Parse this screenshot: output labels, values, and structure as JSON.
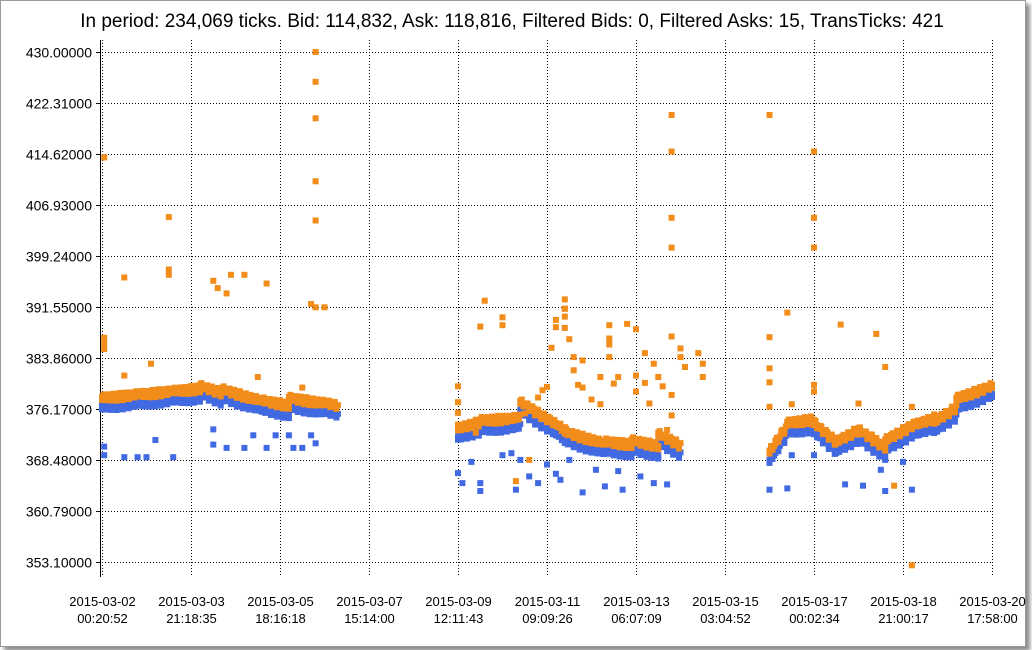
{
  "chart_data": {
    "type": "scatter",
    "title": "In period: 234,069 ticks. Bid: 114,832, Ask: 118,816, Filtered Bids: 0, Filtered Asks: 15, TransTicks: 421",
    "ylim": [
      353.1,
      430.0
    ],
    "y_ticks": [
      "430.00000",
      "422.31000",
      "414.62000",
      "406.93000",
      "399.24000",
      "391.55000",
      "383.86000",
      "376.17000",
      "368.48000",
      "360.79000",
      "353.10000"
    ],
    "x_ticks": [
      {
        "date": "2015-03-02",
        "time": "00:20:52"
      },
      {
        "date": "2015-03-03",
        "time": "21:18:35"
      },
      {
        "date": "2015-03-05",
        "time": "18:16:18"
      },
      {
        "date": "2015-03-07",
        "time": "15:14:00"
      },
      {
        "date": "2015-03-09",
        "time": "12:11:43"
      },
      {
        "date": "2015-03-11",
        "time": "09:09:26"
      },
      {
        "date": "2015-03-13",
        "time": "06:07:09"
      },
      {
        "date": "2015-03-15",
        "time": "03:04:52"
      },
      {
        "date": "2015-03-17",
        "time": "00:02:34"
      },
      {
        "date": "2015-03-18",
        "time": "21:00:17"
      },
      {
        "date": "2015-03-20",
        "time": "17:58:00"
      }
    ],
    "grid": true,
    "series": [
      {
        "color": "#4169e1",
        "segments": [
          [
            0.0,
            2.2,
            376.6,
            378.0
          ],
          [
            2.2,
            2.7,
            378.6,
            377.4
          ],
          [
            2.7,
            3.6,
            378.0,
            376.2
          ],
          [
            3.6,
            4.2,
            376.2,
            375.5
          ],
          [
            4.2,
            5.3,
            376.6,
            375.6
          ],
          [
            8.0,
            8.5,
            372.0,
            373.0
          ],
          [
            8.5,
            9.4,
            373.2,
            373.6
          ],
          [
            9.4,
            10.4,
            376.0,
            371.8
          ],
          [
            10.4,
            11.3,
            371.5,
            369.7
          ],
          [
            11.3,
            11.9,
            370.0,
            369.6
          ],
          [
            11.9,
            12.5,
            370.2,
            369.4
          ],
          [
            12.5,
            13.0,
            371.2,
            369.5
          ],
          [
            15.0,
            15.4,
            368.5,
            372.5
          ],
          [
            15.4,
            16.0,
            372.8,
            373.4
          ],
          [
            16.0,
            16.5,
            372.8,
            370.0
          ],
          [
            16.5,
            17.0,
            370.0,
            371.8
          ],
          [
            17.0,
            17.6,
            371.8,
            369.2
          ],
          [
            17.6,
            18.3,
            370.2,
            372.8
          ],
          [
            18.3,
            18.7,
            372.6,
            373.6
          ],
          [
            18.7,
            19.2,
            373.0,
            375.2
          ],
          [
            19.2,
            20.0,
            376.5,
            378.4
          ]
        ],
        "points": [
          [
            0.05,
            370.5
          ],
          [
            0.05,
            369.2
          ],
          [
            0.5,
            368.9
          ],
          [
            0.8,
            368.9
          ],
          [
            1.0,
            368.9
          ],
          [
            1.2,
            371.5
          ],
          [
            1.6,
            368.9
          ],
          [
            2.5,
            370.8
          ],
          [
            2.5,
            373.1
          ],
          [
            2.8,
            370.3
          ],
          [
            3.2,
            370.3
          ],
          [
            3.4,
            372.2
          ],
          [
            3.7,
            370.3
          ],
          [
            3.9,
            372.2
          ],
          [
            4.2,
            372.2
          ],
          [
            4.3,
            370.3
          ],
          [
            4.5,
            370.3
          ],
          [
            4.7,
            372.2
          ],
          [
            4.8,
            371.0
          ],
          [
            8.0,
            366.5
          ],
          [
            8.1,
            365.0
          ],
          [
            8.3,
            368.2
          ],
          [
            8.5,
            365.0
          ],
          [
            8.5,
            363.8
          ],
          [
            9.0,
            369.2
          ],
          [
            9.2,
            369.5
          ],
          [
            9.3,
            364.0
          ],
          [
            9.4,
            368.5
          ],
          [
            9.6,
            366.0
          ],
          [
            9.8,
            365.0
          ],
          [
            10.0,
            367.8
          ],
          [
            10.2,
            366.4
          ],
          [
            10.3,
            365.5
          ],
          [
            10.5,
            368.5
          ],
          [
            10.8,
            363.6
          ],
          [
            11.1,
            367.0
          ],
          [
            11.3,
            364.5
          ],
          [
            11.6,
            366.8
          ],
          [
            11.7,
            364.0
          ],
          [
            12.1,
            366.0
          ],
          [
            12.4,
            365.0
          ],
          [
            12.7,
            364.8
          ],
          [
            15.0,
            364.0
          ],
          [
            15.4,
            364.2
          ],
          [
            15.5,
            369.2
          ],
          [
            16.0,
            369.2
          ],
          [
            16.7,
            364.8
          ],
          [
            17.1,
            364.6
          ],
          [
            17.5,
            367.0
          ],
          [
            17.6,
            363.8
          ],
          [
            18.0,
            368.2
          ],
          [
            18.2,
            364.0
          ]
        ]
      },
      {
        "color": "#f28c1a",
        "segments": [
          [
            0.0,
            2.2,
            378.0,
            379.4
          ],
          [
            2.2,
            2.7,
            379.8,
            378.8
          ],
          [
            2.7,
            3.6,
            379.3,
            377.5
          ],
          [
            3.6,
            4.2,
            377.6,
            376.9
          ],
          [
            4.2,
            5.3,
            378.0,
            376.9
          ],
          [
            8.0,
            8.5,
            373.4,
            374.4
          ],
          [
            8.5,
            9.4,
            374.6,
            375.0
          ],
          [
            9.4,
            10.4,
            377.4,
            373.2
          ],
          [
            10.4,
            11.3,
            372.9,
            371.1
          ],
          [
            11.3,
            11.9,
            371.4,
            371.0
          ],
          [
            11.9,
            12.5,
            371.6,
            370.8
          ],
          [
            12.5,
            13.0,
            372.6,
            370.9
          ],
          [
            15.0,
            15.4,
            369.9,
            373.9
          ],
          [
            15.4,
            16.0,
            374.2,
            374.8
          ],
          [
            16.0,
            16.5,
            374.2,
            371.4
          ],
          [
            16.5,
            17.0,
            371.4,
            373.2
          ],
          [
            17.0,
            17.6,
            373.2,
            370.6
          ],
          [
            17.6,
            18.3,
            371.6,
            374.2
          ],
          [
            18.3,
            18.7,
            374.0,
            375.0
          ],
          [
            18.7,
            19.2,
            374.4,
            376.6
          ],
          [
            19.2,
            20.0,
            377.9,
            379.8
          ]
        ],
        "points": [
          [
            0.05,
            414.1
          ],
          [
            0.05,
            386.9
          ],
          [
            0.05,
            386.0
          ],
          [
            0.05,
            385.2
          ],
          [
            0.5,
            381.2
          ],
          [
            0.5,
            396.0
          ],
          [
            1.1,
            383.0
          ],
          [
            1.5,
            405.1
          ],
          [
            1.5,
            397.2
          ],
          [
            1.5,
            396.4
          ],
          [
            2.5,
            395.5
          ],
          [
            2.6,
            394.4
          ],
          [
            2.8,
            393.6
          ],
          [
            2.9,
            396.4
          ],
          [
            3.2,
            396.4
          ],
          [
            3.5,
            381.0
          ],
          [
            3.7,
            395.1
          ],
          [
            4.5,
            379.4
          ],
          [
            4.7,
            392.0
          ],
          [
            4.8,
            430.0
          ],
          [
            4.8,
            425.5
          ],
          [
            4.8,
            420.0
          ],
          [
            4.8,
            410.5
          ],
          [
            4.8,
            404.6
          ],
          [
            4.8,
            391.5
          ],
          [
            5.0,
            391.5
          ],
          [
            8.0,
            379.6
          ],
          [
            8.0,
            377.2
          ],
          [
            8.0,
            375.6
          ],
          [
            8.0,
            373.8
          ],
          [
            8.4,
            372.6
          ],
          [
            8.5,
            388.6
          ],
          [
            8.6,
            392.5
          ],
          [
            9.0,
            390.0
          ],
          [
            9.0,
            388.8
          ],
          [
            9.3,
            365.3
          ],
          [
            9.5,
            375.5
          ],
          [
            9.6,
            368.5
          ],
          [
            9.8,
            377.9
          ],
          [
            9.9,
            379.0
          ],
          [
            10.0,
            379.5
          ],
          [
            10.1,
            385.4
          ],
          [
            10.2,
            389.6
          ],
          [
            10.2,
            388.5
          ],
          [
            10.4,
            392.7
          ],
          [
            10.4,
            391.3
          ],
          [
            10.4,
            391.3
          ],
          [
            10.4,
            390.1
          ],
          [
            10.4,
            388.4
          ],
          [
            10.5,
            386.7
          ],
          [
            10.6,
            384.0
          ],
          [
            10.6,
            382.0
          ],
          [
            10.7,
            379.8
          ],
          [
            10.8,
            383.5
          ],
          [
            10.8,
            379.4
          ],
          [
            11.0,
            377.6
          ],
          [
            11.2,
            376.9
          ],
          [
            11.2,
            381.0
          ],
          [
            11.4,
            388.8
          ],
          [
            11.4,
            386.8
          ],
          [
            11.4,
            385.9
          ],
          [
            11.4,
            384.0
          ],
          [
            11.5,
            380.0
          ],
          [
            11.6,
            381.0
          ],
          [
            11.8,
            389.0
          ],
          [
            12.0,
            388.2
          ],
          [
            12.0,
            381.2
          ],
          [
            12.0,
            378.8
          ],
          [
            12.2,
            380.1
          ],
          [
            12.2,
            384.6
          ],
          [
            12.3,
            377.0
          ],
          [
            12.4,
            383.0
          ],
          [
            12.5,
            381.0
          ],
          [
            12.6,
            379.6
          ],
          [
            12.7,
            373.0
          ],
          [
            12.8,
            420.5
          ],
          [
            12.8,
            415.0
          ],
          [
            12.8,
            405.0
          ],
          [
            12.8,
            400.5
          ],
          [
            12.8,
            387.1
          ],
          [
            12.8,
            378.3
          ],
          [
            12.8,
            375.2
          ],
          [
            12.8,
            371.5
          ],
          [
            13.0,
            385.3
          ],
          [
            13.0,
            384.0
          ],
          [
            13.1,
            382.5
          ],
          [
            13.4,
            384.6
          ],
          [
            13.5,
            383.0
          ],
          [
            13.5,
            381.0
          ],
          [
            15.0,
            420.5
          ],
          [
            15.0,
            387.0
          ],
          [
            15.0,
            382.3
          ],
          [
            15.0,
            380.2
          ],
          [
            15.0,
            376.5
          ],
          [
            15.4,
            390.7
          ],
          [
            15.5,
            376.9
          ],
          [
            16.0,
            415.0
          ],
          [
            16.0,
            405.0
          ],
          [
            16.0,
            400.5
          ],
          [
            16.0,
            379.8
          ],
          [
            16.0,
            378.8
          ],
          [
            16.6,
            388.9
          ],
          [
            17.0,
            377.0
          ],
          [
            17.0,
            372.6
          ],
          [
            17.3,
            372.3
          ],
          [
            17.4,
            387.5
          ],
          [
            17.6,
            382.5
          ],
          [
            17.6,
            370.8
          ],
          [
            17.8,
            364.6
          ],
          [
            18.2,
            376.5
          ],
          [
            18.2,
            352.6
          ]
        ]
      }
    ]
  }
}
